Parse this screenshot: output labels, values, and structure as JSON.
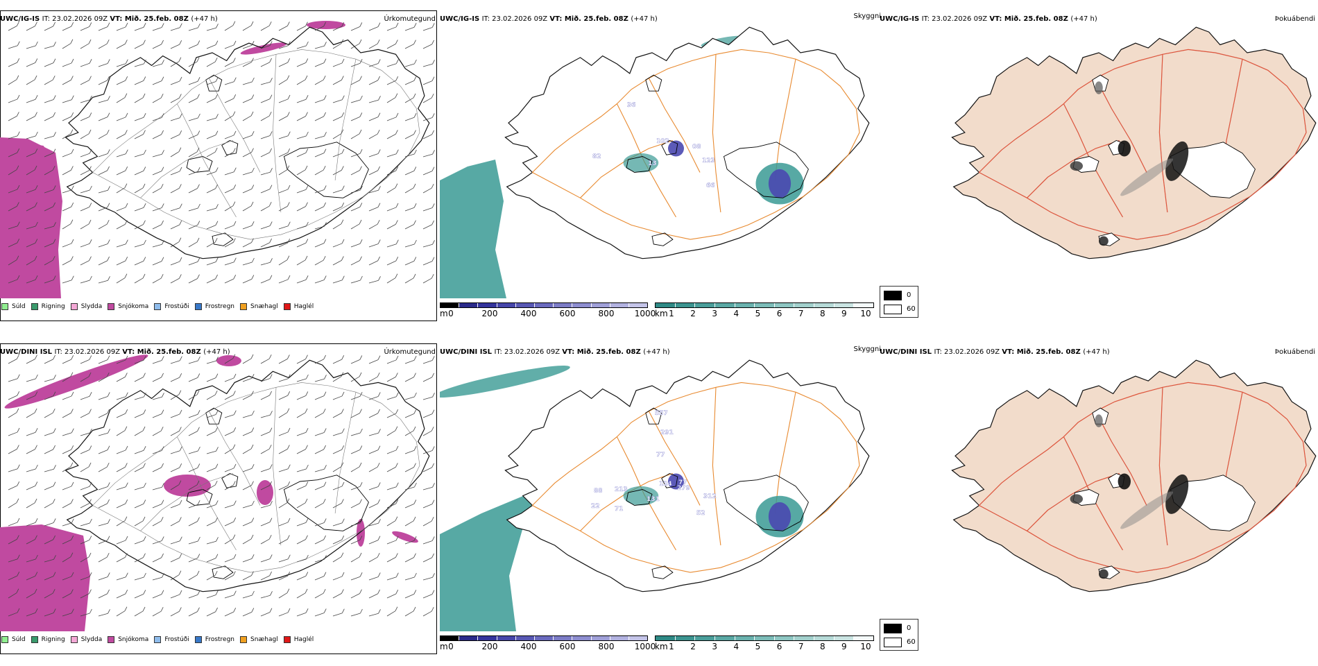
{
  "rows": [
    {
      "model": "UWC/IG-IS",
      "it_label": "IT:",
      "it_value": "23.02.2026 09Z",
      "vt_label": "VT:",
      "vt_value": "Mið. 25.feb. 08Z",
      "lead": "(+47 h)",
      "ceiling_labels": [
        "102",
        "82",
        "13",
        "123",
        "66",
        "08",
        "36"
      ]
    },
    {
      "model": "UWC/DINI ISL",
      "it_label": "IT:",
      "it_value": "23.02.2026 09Z",
      "vt_label": "VT:",
      "vt_value": "Mið. 25.feb. 08Z",
      "lead": "(+47 h)",
      "ceiling_labels": [
        "557",
        "291",
        "77",
        "124",
        "77",
        "88",
        "213",
        "131",
        "22",
        "71",
        "312",
        "52",
        "279"
      ]
    }
  ],
  "panel_titles": {
    "precip": "Úrkomutegund",
    "ceiling": "Skyggni",
    "fog": "Þokuábendi"
  },
  "precip_legend": [
    {
      "label": "Súld",
      "color": "#90ee90"
    },
    {
      "label": "Rigning",
      "color": "#3a9a6c"
    },
    {
      "label": "Slydda",
      "color": "#f4a8d6"
    },
    {
      "label": "Snjókoma",
      "color": "#c04aa0"
    },
    {
      "label": "Frostúði",
      "color": "#8fbcec"
    },
    {
      "label": "Frostregn",
      "color": "#3878c8"
    },
    {
      "label": "Snæhagl",
      "color": "#f0a020"
    },
    {
      "label": "Haglél",
      "color": "#e01818"
    }
  ],
  "ceiling_bar_m": {
    "unit": "m",
    "ticks": [
      "0",
      "200",
      "400",
      "600",
      "800",
      "1000"
    ],
    "colors": [
      "#000000",
      "#2a2a8a",
      "#34349c",
      "#4646aa",
      "#5858b4",
      "#6a6abe",
      "#7c7cc6",
      "#8e8ed0",
      "#a0a0d8",
      "#b2b2e0",
      "#c4c4e8"
    ]
  },
  "ceiling_bar_km": {
    "unit": "km",
    "ticks": [
      "1",
      "2",
      "3",
      "4",
      "5",
      "6",
      "7",
      "8",
      "9",
      "10"
    ],
    "colors": [
      "#2f8a86",
      "#3c9490",
      "#4a9e9a",
      "#5aa8a4",
      "#6ab2ae",
      "#7cbcb8",
      "#8ec6c2",
      "#a2d0cc",
      "#b6dad7",
      "#cae4e2",
      "#f4fafa"
    ]
  },
  "fog_legend": {
    "items": [
      {
        "label": "0",
        "color": "#000000"
      },
      {
        "label": "60",
        "color": "#ffffff"
      }
    ]
  },
  "colors": {
    "snow": "#c04aa0",
    "ceiling_teal": "#3a9a94",
    "ceiling_purple": "#4a48b0",
    "roads": "#e88a30",
    "fog_land": "#f2dccb",
    "fog_roads": "#e0563a",
    "fog_rivers": "#8aa0f0"
  }
}
